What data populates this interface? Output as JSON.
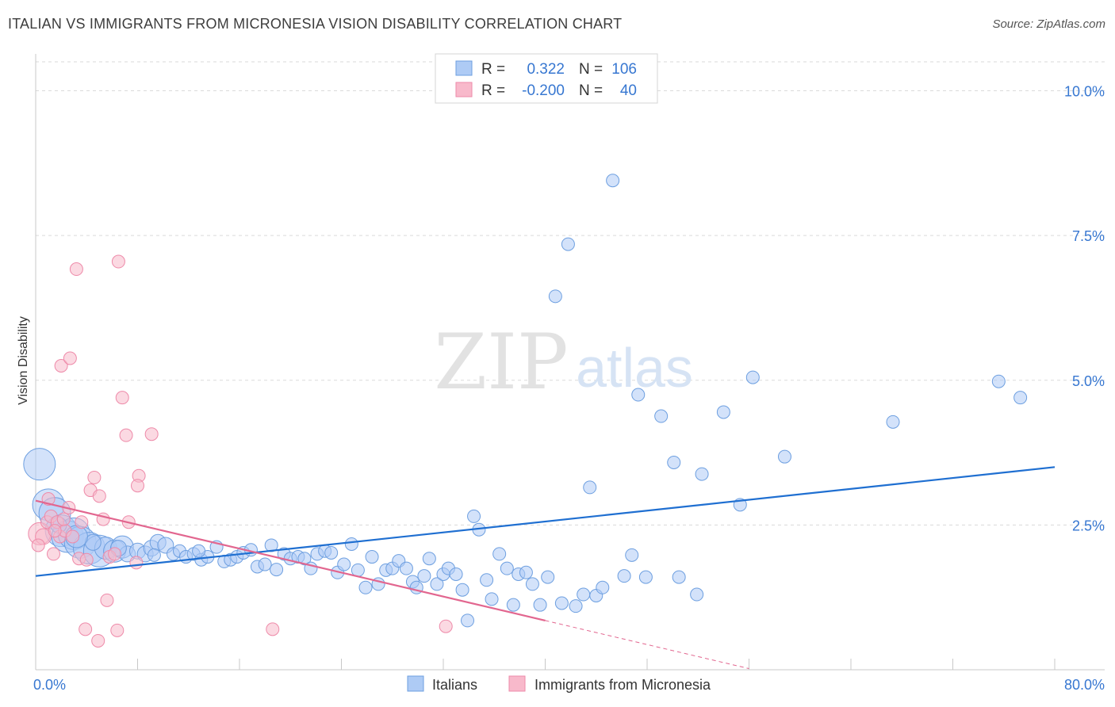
{
  "title": "ITALIAN VS IMMIGRANTS FROM MICRONESIA VISION DISABILITY CORRELATION CHART",
  "source": "Source: ZipAtlas.com",
  "watermark": {
    "zip": "ZIP",
    "atlas": "atlas"
  },
  "colors": {
    "blue_fill": "#aecbf5",
    "blue_stroke": "#6d9fe0",
    "blue_line": "#1f6fd1",
    "blue_text": "#3777d1",
    "pink_fill": "#f8b9cb",
    "pink_stroke": "#ee8aa9",
    "pink_line": "#e2668f",
    "grid": "#dadada",
    "axis": "#c8c8c8"
  },
  "stats": [
    {
      "r_label": "R =",
      "r_value": "0.322",
      "n_label": "N =",
      "n_value": "106"
    },
    {
      "r_label": "R =",
      "r_value": "-0.200",
      "n_label": "N =",
      "n_value": "40"
    }
  ],
  "chart_data": {
    "type": "scatter",
    "title": "ITALIAN VS IMMIGRANTS FROM MICRONESIA VISION DISABILITY CORRELATION CHART",
    "xlabel": "",
    "ylabel": "Vision Disability",
    "xlim": [
      0,
      80
    ],
    "ylim": [
      0,
      10.5
    ],
    "x_tick_labels": [
      "0.0%",
      "80.0%"
    ],
    "y_ticks": [
      2.5,
      5.0,
      7.5,
      10.0
    ],
    "y_tick_labels": [
      "2.5%",
      "5.0%",
      "7.5%",
      "10.0%"
    ],
    "grid": true,
    "legend_position": "bottom-center",
    "series": [
      {
        "name": "Italians",
        "regression": {
          "x": [
            0,
            80
          ],
          "y": [
            1.62,
            3.5
          ]
        },
        "points": [
          [
            0.3,
            3.55,
            20
          ],
          [
            1.0,
            2.85,
            20
          ],
          [
            1.5,
            2.7,
            20
          ],
          [
            2.0,
            2.4,
            20
          ],
          [
            2.5,
            2.3,
            20
          ],
          [
            3.0,
            2.35,
            20
          ],
          [
            3.5,
            2.2,
            20
          ],
          [
            4.2,
            2.1,
            20
          ],
          [
            5.0,
            2.05,
            20
          ],
          [
            5.5,
            2.1,
            14
          ],
          [
            6.2,
            2.05,
            14
          ],
          [
            6.8,
            2.12,
            14
          ],
          [
            7.2,
            2.0,
            10
          ],
          [
            8.0,
            2.05,
            10
          ],
          [
            8.6,
            2.0,
            10
          ],
          [
            9.1,
            2.1,
            10
          ],
          [
            9.6,
            2.2,
            10
          ],
          [
            10.2,
            2.15,
            10
          ],
          [
            10.8,
            2.0,
            8
          ],
          [
            11.3,
            2.05,
            8
          ],
          [
            11.8,
            1.95,
            8
          ],
          [
            12.4,
            2.0,
            8
          ],
          [
            13.0,
            1.9,
            8
          ],
          [
            13.5,
            1.95,
            8
          ],
          [
            14.2,
            2.12,
            8
          ],
          [
            14.8,
            1.87,
            8
          ],
          [
            15.3,
            1.9,
            8
          ],
          [
            15.8,
            1.95,
            8
          ],
          [
            16.3,
            2.02,
            8
          ],
          [
            16.9,
            2.07,
            8
          ],
          [
            17.4,
            1.78,
            8
          ],
          [
            18.0,
            1.82,
            8
          ],
          [
            18.5,
            2.15,
            8
          ],
          [
            18.9,
            1.73,
            8
          ],
          [
            19.5,
            2.0,
            8
          ],
          [
            20.0,
            1.92,
            8
          ],
          [
            20.6,
            1.95,
            8
          ],
          [
            21.1,
            1.92,
            8
          ],
          [
            21.6,
            1.75,
            8
          ],
          [
            22.1,
            2.0,
            8
          ],
          [
            22.7,
            2.05,
            8
          ],
          [
            23.2,
            2.02,
            8
          ],
          [
            23.7,
            1.68,
            8
          ],
          [
            24.2,
            1.82,
            8
          ],
          [
            24.8,
            2.17,
            8
          ],
          [
            25.3,
            1.72,
            8
          ],
          [
            25.9,
            1.42,
            8
          ],
          [
            26.4,
            1.95,
            8
          ],
          [
            26.9,
            1.48,
            8
          ],
          [
            27.5,
            1.72,
            8
          ],
          [
            28.0,
            1.75,
            8
          ],
          [
            28.5,
            1.88,
            8
          ],
          [
            29.1,
            1.75,
            8
          ],
          [
            29.6,
            1.52,
            8
          ],
          [
            29.9,
            1.42,
            8
          ],
          [
            30.5,
            1.62,
            8
          ],
          [
            30.9,
            1.92,
            8
          ],
          [
            31.5,
            1.48,
            8
          ],
          [
            32.0,
            1.65,
            8
          ],
          [
            32.4,
            1.75,
            8
          ],
          [
            33.0,
            1.65,
            8
          ],
          [
            33.5,
            1.38,
            8
          ],
          [
            33.9,
            0.85,
            8
          ],
          [
            34.4,
            2.65,
            8
          ],
          [
            34.8,
            2.42,
            8
          ],
          [
            35.4,
            1.55,
            8
          ],
          [
            35.8,
            1.22,
            8
          ],
          [
            36.4,
            2.0,
            8
          ],
          [
            37.0,
            1.75,
            8
          ],
          [
            37.5,
            1.12,
            8
          ],
          [
            37.9,
            1.65,
            8
          ],
          [
            38.5,
            1.68,
            8
          ],
          [
            39.0,
            1.48,
            8
          ],
          [
            39.6,
            1.12,
            8
          ],
          [
            40.2,
            1.6,
            8
          ],
          [
            40.8,
            6.45,
            8
          ],
          [
            41.3,
            1.15,
            8
          ],
          [
            41.8,
            7.35,
            8
          ],
          [
            42.4,
            1.1,
            8
          ],
          [
            43.0,
            1.3,
            8
          ],
          [
            43.5,
            3.15,
            8
          ],
          [
            44.0,
            1.28,
            8
          ],
          [
            44.5,
            1.42,
            8
          ],
          [
            45.3,
            8.45,
            8
          ],
          [
            46.2,
            1.62,
            8
          ],
          [
            46.8,
            1.98,
            8
          ],
          [
            47.3,
            4.75,
            8
          ],
          [
            47.9,
            1.6,
            8
          ],
          [
            49.1,
            4.38,
            8
          ],
          [
            50.1,
            3.58,
            8
          ],
          [
            50.5,
            1.6,
            8
          ],
          [
            51.9,
            1.3,
            8
          ],
          [
            52.3,
            3.38,
            8
          ],
          [
            54.0,
            4.45,
            8
          ],
          [
            55.3,
            2.85,
            8
          ],
          [
            56.3,
            5.05,
            8
          ],
          [
            58.8,
            3.68,
            8
          ],
          [
            67.3,
            4.28,
            8
          ],
          [
            75.6,
            4.98,
            8
          ],
          [
            77.3,
            4.7,
            8
          ],
          [
            1.8,
            2.5,
            10
          ],
          [
            4.5,
            2.2,
            10
          ],
          [
            6.5,
            2.1,
            10
          ],
          [
            3.2,
            2.3,
            14
          ],
          [
            9.3,
            1.98,
            8
          ],
          [
            12.8,
            2.05,
            8
          ]
        ]
      },
      {
        "name": "Immigrants from Micronesia",
        "regression": {
          "x": [
            0,
            40
          ],
          "y": [
            2.92,
            0.85
          ],
          "dashed_to": {
            "x": 56,
            "y": 0.02
          }
        },
        "points": [
          [
            0.3,
            2.35,
            14
          ],
          [
            0.6,
            2.3,
            10
          ],
          [
            0.9,
            2.55,
            8
          ],
          [
            1.2,
            2.65,
            8
          ],
          [
            1.4,
            2.0,
            8
          ],
          [
            1.7,
            2.55,
            8
          ],
          [
            1.9,
            2.3,
            8
          ],
          [
            2.0,
            5.25,
            8
          ],
          [
            2.3,
            2.4,
            8
          ],
          [
            2.6,
            2.8,
            8
          ],
          [
            2.7,
            5.38,
            8
          ],
          [
            2.9,
            2.3,
            8
          ],
          [
            3.2,
            6.92,
            8
          ],
          [
            3.4,
            1.92,
            8
          ],
          [
            3.6,
            2.55,
            8
          ],
          [
            3.9,
            0.7,
            8
          ],
          [
            4.0,
            1.9,
            8
          ],
          [
            4.3,
            3.1,
            8
          ],
          [
            4.6,
            3.32,
            8
          ],
          [
            4.9,
            0.5,
            8
          ],
          [
            5.0,
            3.0,
            8
          ],
          [
            5.3,
            2.6,
            8
          ],
          [
            5.6,
            1.2,
            8
          ],
          [
            5.8,
            1.95,
            8
          ],
          [
            6.2,
            2.0,
            8
          ],
          [
            6.4,
            0.68,
            8
          ],
          [
            6.5,
            7.05,
            8
          ],
          [
            6.8,
            4.7,
            8
          ],
          [
            7.1,
            4.05,
            8
          ],
          [
            7.3,
            2.55,
            8
          ],
          [
            7.9,
            1.85,
            8
          ],
          [
            8.1,
            3.35,
            8
          ],
          [
            8.0,
            3.18,
            8
          ],
          [
            9.1,
            4.07,
            8
          ],
          [
            18.6,
            0.7,
            8
          ],
          [
            32.2,
            0.75,
            8
          ],
          [
            1.0,
            2.95,
            8
          ],
          [
            1.5,
            2.4,
            8
          ],
          [
            2.2,
            2.6,
            8
          ],
          [
            0.2,
            2.15,
            8
          ]
        ]
      }
    ]
  },
  "legend": [
    {
      "label": "Italians"
    },
    {
      "label": "Immigrants from Micronesia"
    }
  ]
}
